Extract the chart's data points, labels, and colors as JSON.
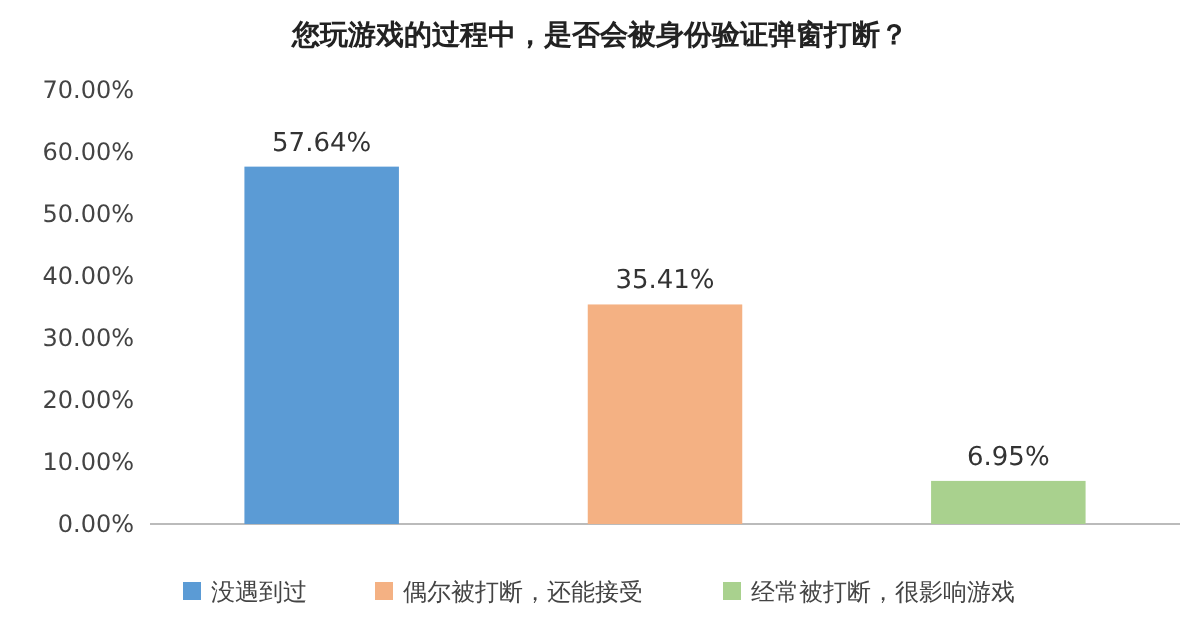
{
  "chart_data": {
    "type": "bar",
    "title": "您玩游戏的过程中，是否会被身份验证弹窗打断？",
    "categories": [
      null,
      null,
      null
    ],
    "series": [
      {
        "name": "没遇到过",
        "color": "#5b9bd5",
        "values": [
          57.64,
          null,
          null
        ],
        "value_labels": [
          "57.64%",
          null,
          null
        ]
      },
      {
        "name": "偶尔被打断，还能接受",
        "color": "#f4b183",
        "values": [
          null,
          35.41,
          null
        ],
        "value_labels": [
          null,
          "35.41%",
          null
        ]
      },
      {
        "name": "经常被打断，很影响游戏",
        "color": "#a9d18e",
        "values": [
          null,
          null,
          6.95
        ],
        "value_labels": [
          null,
          null,
          "6.95%"
        ]
      }
    ],
    "ylim": [
      0,
      70
    ],
    "yticks": [
      {
        "value": 0,
        "label": "0.00%"
      },
      {
        "value": 10,
        "label": "10.00%"
      },
      {
        "value": 20,
        "label": "20.00%"
      },
      {
        "value": 30,
        "label": "30.00%"
      },
      {
        "value": 40,
        "label": "40.00%"
      },
      {
        "value": 50,
        "label": "50.00%"
      },
      {
        "value": 60,
        "label": "60.00%"
      },
      {
        "value": 70,
        "label": "70.00%"
      }
    ],
    "grid": false,
    "legend": "bottom"
  }
}
